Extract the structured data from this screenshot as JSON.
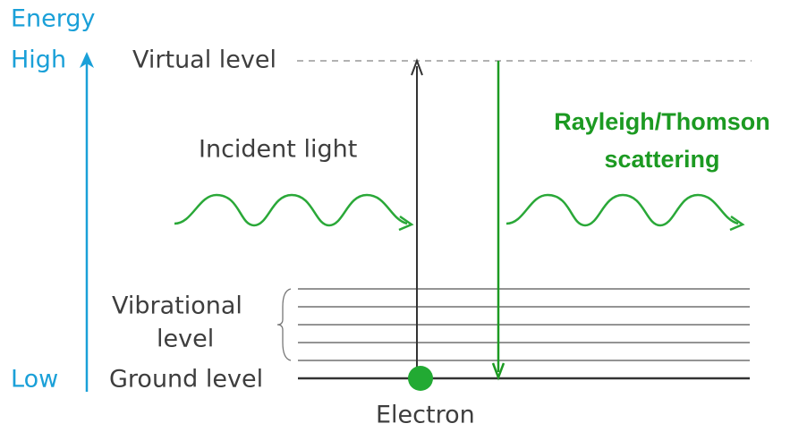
{
  "axis": {
    "label": "Energy",
    "high": "High",
    "low": "Low"
  },
  "levels": {
    "virtual": "Virtual level",
    "vibrational": [
      "Vibrational",
      "level"
    ],
    "ground": "Ground level"
  },
  "incident_light": "Incident light",
  "scattering": [
    "Rayleigh/Thomson",
    "scattering"
  ],
  "electron": "Electron"
}
